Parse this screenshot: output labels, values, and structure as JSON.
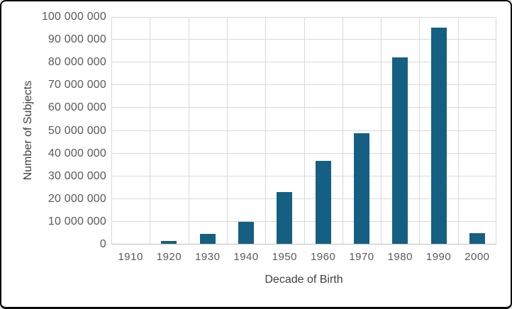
{
  "chart_data": {
    "type": "bar",
    "title": "",
    "categories": [
      "1910",
      "1920",
      "1930",
      "1940",
      "1950",
      "1960",
      "1970",
      "1980",
      "1990",
      "2000"
    ],
    "values": [
      0,
      1400000,
      4400000,
      9600000,
      22600000,
      36300000,
      48700000,
      82000000,
      95000000,
      4600000
    ],
    "xlabel": "Decade of Birth",
    "ylabel": "Number of Subjects",
    "ylim": [
      0,
      100000000
    ],
    "ytick_step": 10000000,
    "ytick_labels": [
      "0",
      "10 000 000",
      "20 000 000",
      "30 000 000",
      "40 000 000",
      "50 000 000",
      "60 000 000",
      "70 000 000",
      "80 000 000",
      "90 000 000",
      "100 000 000"
    ],
    "grid": "both",
    "legend": "none",
    "colors": {
      "bar": "#156082",
      "gridline": "#D9D9D9",
      "axis_line": "#BFBFBF",
      "tick_label": "#595959",
      "axis_title": "#3F3F3F",
      "frame_border": "#0A0A0A",
      "background": "#FFFFFF"
    }
  }
}
